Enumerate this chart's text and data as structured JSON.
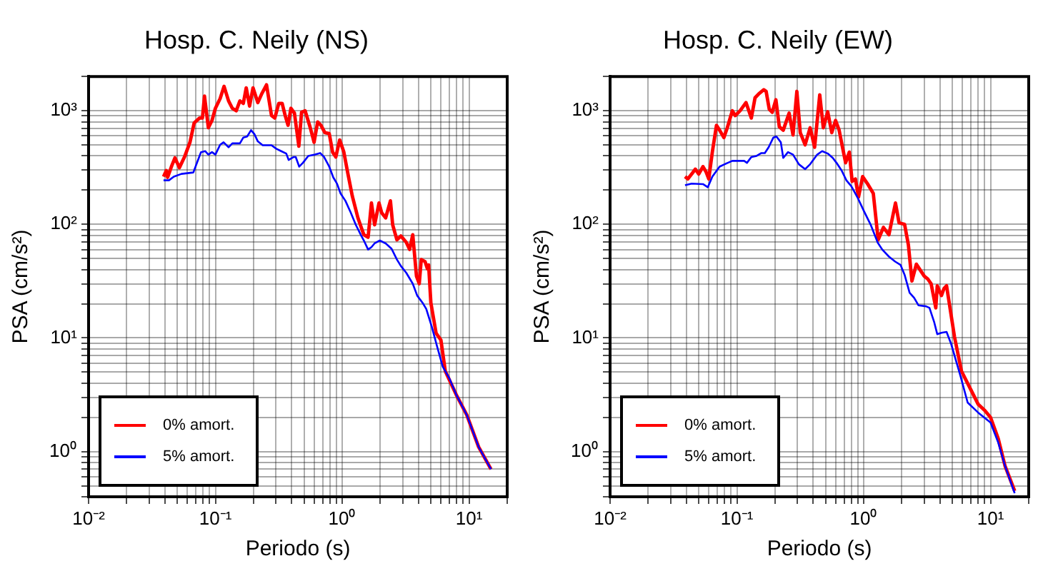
{
  "chart_data": [
    {
      "type": "line",
      "title": "Hosp. C. Neily (NS)",
      "xlabel": "Periodo (s)",
      "ylabel": "PSA (cm/s²)",
      "log": "xy",
      "grid": true,
      "legend": "bottom left",
      "xlim": [
        0.01,
        20
      ],
      "ylim": [
        0.4,
        2000
      ],
      "xticks": [
        {
          "value": 0.01,
          "label": "10⁻²"
        },
        {
          "value": 0.02,
          "label": null
        },
        {
          "value": 0.03,
          "label": null
        },
        {
          "value": 0.04,
          "label": null
        },
        {
          "value": 0.05,
          "label": null
        },
        {
          "value": 0.06,
          "label": null
        },
        {
          "value": 0.07,
          "label": null
        },
        {
          "value": 0.08,
          "label": null
        },
        {
          "value": 0.09,
          "label": null
        },
        {
          "value": 0.1,
          "label": "10⁻¹"
        },
        {
          "value": 0.2,
          "label": null
        },
        {
          "value": 0.3,
          "label": null
        },
        {
          "value": 0.4,
          "label": null
        },
        {
          "value": 0.5,
          "label": null
        },
        {
          "value": 0.6,
          "label": null
        },
        {
          "value": 0.7,
          "label": null
        },
        {
          "value": 0.8,
          "label": null
        },
        {
          "value": 0.9,
          "label": null
        },
        {
          "value": 1,
          "label": "10⁰"
        },
        {
          "value": 2,
          "label": null
        },
        {
          "value": 3,
          "label": null
        },
        {
          "value": 4,
          "label": null
        },
        {
          "value": 5,
          "label": null
        },
        {
          "value": 6,
          "label": null
        },
        {
          "value": 7,
          "label": null
        },
        {
          "value": 8,
          "label": null
        },
        {
          "value": 9,
          "label": null
        },
        {
          "value": 10,
          "label": "10¹"
        },
        {
          "value": 20,
          "label": null
        }
      ],
      "yticks": [
        {
          "value": 0.4,
          "label": null
        },
        {
          "value": 0.5,
          "label": null
        },
        {
          "value": 0.6,
          "label": null
        },
        {
          "value": 0.7,
          "label": null
        },
        {
          "value": 0.8,
          "label": null
        },
        {
          "value": 0.9,
          "label": null
        },
        {
          "value": 1,
          "label": "10⁰"
        },
        {
          "value": 2,
          "label": null
        },
        {
          "value": 3,
          "label": null
        },
        {
          "value": 4,
          "label": null
        },
        {
          "value": 5,
          "label": null
        },
        {
          "value": 6,
          "label": null
        },
        {
          "value": 7,
          "label": null
        },
        {
          "value": 8,
          "label": null
        },
        {
          "value": 9,
          "label": null
        },
        {
          "value": 10,
          "label": "10¹"
        },
        {
          "value": 20,
          "label": null
        },
        {
          "value": 30,
          "label": null
        },
        {
          "value": 40,
          "label": null
        },
        {
          "value": 50,
          "label": null
        },
        {
          "value": 60,
          "label": null
        },
        {
          "value": 70,
          "label": null
        },
        {
          "value": 80,
          "label": null
        },
        {
          "value": 90,
          "label": null
        },
        {
          "value": 100,
          "label": "10²"
        },
        {
          "value": 200,
          "label": null
        },
        {
          "value": 300,
          "label": null
        },
        {
          "value": 400,
          "label": null
        },
        {
          "value": 500,
          "label": null
        },
        {
          "value": 600,
          "label": null
        },
        {
          "value": 700,
          "label": null
        },
        {
          "value": 800,
          "label": null
        },
        {
          "value": 900,
          "label": null
        },
        {
          "value": 1000,
          "label": "10³"
        },
        {
          "value": 2000,
          "label": null
        }
      ],
      "series": [
        {
          "name": "0% amort.",
          "color": "#ff0000",
          "x": [
            0.039,
            0.041,
            0.042,
            0.045,
            0.048,
            0.052,
            0.057,
            0.063,
            0.068,
            0.075,
            0.079,
            0.082,
            0.088,
            0.094,
            0.1,
            0.109,
            0.117,
            0.127,
            0.136,
            0.146,
            0.156,
            0.166,
            0.175,
            0.186,
            0.198,
            0.216,
            0.232,
            0.253,
            0.277,
            0.294,
            0.316,
            0.336,
            0.355,
            0.374,
            0.394,
            0.42,
            0.455,
            0.478,
            0.51,
            0.56,
            0.6,
            0.64,
            0.68,
            0.73,
            0.79,
            0.84,
            0.89,
            0.955,
            1.03,
            1.1,
            1.2,
            1.33,
            1.48,
            1.6,
            1.7,
            1.8,
            1.95,
            2.05,
            2.2,
            2.4,
            2.5,
            2.7,
            2.9,
            3.2,
            3.4,
            3.6,
            3.85,
            4.05,
            4.2,
            4.5,
            4.7,
            4.8,
            5.0,
            5.5,
            6.0,
            6.5,
            8.0,
            9.6,
            11.9,
            14.9
          ],
          "values": [
            263,
            297,
            259,
            322,
            385,
            315,
            391,
            527,
            781,
            862,
            862,
            1345,
            708,
            821,
            1050,
            1280,
            1640,
            1220,
            1050,
            1000,
            1220,
            1160,
            1590,
            1100,
            1590,
            1180,
            1410,
            1690,
            906,
            862,
            1160,
            1160,
            906,
            744,
            1050,
            952,
            487,
            970,
            1000,
            708,
            527,
            797,
            744,
            641,
            629,
            432,
            391,
            553,
            432,
            292,
            178,
            114,
            81,
            77,
            154,
            99,
            154,
            126,
            114,
            161,
            99,
            73,
            79,
            69.5,
            60,
            81,
            35,
            30,
            49,
            47,
            40.5,
            44,
            20.4,
            11,
            9.6,
            5.1,
            3.1,
            2.1,
            1.1,
            0.7
          ]
        },
        {
          "name": "5% amort.",
          "color": "#0000ff",
          "x": [
            0.039,
            0.043,
            0.047,
            0.054,
            0.067,
            0.072,
            0.077,
            0.083,
            0.088,
            0.094,
            0.1,
            0.109,
            0.116,
            0.127,
            0.136,
            0.156,
            0.166,
            0.178,
            0.191,
            0.203,
            0.216,
            0.236,
            0.277,
            0.302,
            0.33,
            0.362,
            0.378,
            0.412,
            0.43,
            0.458,
            0.49,
            0.54,
            0.61,
            0.67,
            0.72,
            0.79,
            0.85,
            0.91,
            0.97,
            1.06,
            1.17,
            1.28,
            1.4,
            1.5,
            1.6,
            1.7,
            1.8,
            1.98,
            2.2,
            2.45,
            2.7,
            2.9,
            3.2,
            3.6,
            3.9,
            4.3,
            4.6,
            5.1,
            5.6,
            6.2,
            7.0,
            8.0,
            9.6,
            11.9,
            14.9
          ],
          "values": [
            244,
            244,
            263,
            278,
            286,
            355,
            432,
            441,
            411,
            432,
            411,
            502,
            527,
            477,
            516,
            516,
            581,
            593,
            674,
            623,
            537,
            497,
            497,
            463,
            441,
            420,
            369,
            391,
            391,
            322,
            348,
            400,
            411,
            424,
            391,
            322,
            259,
            228,
            187,
            161,
            126,
            99,
            81,
            70,
            60,
            63,
            68,
            72,
            68,
            61,
            49,
            43,
            37.4,
            30,
            23.6,
            20.4,
            18,
            12.4,
            8.4,
            5.6,
            4.4,
            3.1,
            2.1,
            1.1,
            0.7
          ]
        }
      ]
    },
    {
      "type": "line",
      "title": "Hosp. C. Neily (EW)",
      "xlabel": "Periodo (s)",
      "ylabel": "PSA (cm/s²)",
      "log": "xy",
      "grid": true,
      "legend": "bottom left",
      "xlim": [
        0.01,
        20
      ],
      "ylim": [
        0.4,
        2000
      ],
      "xticks": [
        {
          "value": 0.01,
          "label": "10⁻²"
        },
        {
          "value": 0.02,
          "label": null
        },
        {
          "value": 0.03,
          "label": null
        },
        {
          "value": 0.04,
          "label": null
        },
        {
          "value": 0.05,
          "label": null
        },
        {
          "value": 0.06,
          "label": null
        },
        {
          "value": 0.07,
          "label": null
        },
        {
          "value": 0.08,
          "label": null
        },
        {
          "value": 0.09,
          "label": null
        },
        {
          "value": 0.1,
          "label": "10⁻¹"
        },
        {
          "value": 0.2,
          "label": null
        },
        {
          "value": 0.3,
          "label": null
        },
        {
          "value": 0.4,
          "label": null
        },
        {
          "value": 0.5,
          "label": null
        },
        {
          "value": 0.6,
          "label": null
        },
        {
          "value": 0.7,
          "label": null
        },
        {
          "value": 0.8,
          "label": null
        },
        {
          "value": 0.9,
          "label": null
        },
        {
          "value": 1,
          "label": "10⁰"
        },
        {
          "value": 2,
          "label": null
        },
        {
          "value": 3,
          "label": null
        },
        {
          "value": 4,
          "label": null
        },
        {
          "value": 5,
          "label": null
        },
        {
          "value": 6,
          "label": null
        },
        {
          "value": 7,
          "label": null
        },
        {
          "value": 8,
          "label": null
        },
        {
          "value": 9,
          "label": null
        },
        {
          "value": 10,
          "label": "10¹"
        },
        {
          "value": 20,
          "label": null
        }
      ],
      "yticks": [
        {
          "value": 0.4,
          "label": null
        },
        {
          "value": 0.5,
          "label": null
        },
        {
          "value": 0.6,
          "label": null
        },
        {
          "value": 0.7,
          "label": null
        },
        {
          "value": 0.8,
          "label": null
        },
        {
          "value": 0.9,
          "label": null
        },
        {
          "value": 1,
          "label": "10⁰"
        },
        {
          "value": 2,
          "label": null
        },
        {
          "value": 3,
          "label": null
        },
        {
          "value": 4,
          "label": null
        },
        {
          "value": 5,
          "label": null
        },
        {
          "value": 6,
          "label": null
        },
        {
          "value": 7,
          "label": null
        },
        {
          "value": 8,
          "label": null
        },
        {
          "value": 9,
          "label": null
        },
        {
          "value": 10,
          "label": "10¹"
        },
        {
          "value": 20,
          "label": null
        },
        {
          "value": 30,
          "label": null
        },
        {
          "value": 40,
          "label": null
        },
        {
          "value": 50,
          "label": null
        },
        {
          "value": 60,
          "label": null
        },
        {
          "value": 70,
          "label": null
        },
        {
          "value": 80,
          "label": null
        },
        {
          "value": 90,
          "label": null
        },
        {
          "value": 100,
          "label": "10²"
        },
        {
          "value": 200,
          "label": null
        },
        {
          "value": 300,
          "label": null
        },
        {
          "value": 400,
          "label": null
        },
        {
          "value": 500,
          "label": null
        },
        {
          "value": 600,
          "label": null
        },
        {
          "value": 700,
          "label": null
        },
        {
          "value": 800,
          "label": null
        },
        {
          "value": 900,
          "label": null
        },
        {
          "value": 1000,
          "label": "10³"
        },
        {
          "value": 2000,
          "label": null
        }
      ],
      "series": [
        {
          "name": "0% amort.",
          "color": "#ff0000",
          "x": [
            0.039,
            0.041,
            0.044,
            0.047,
            0.05,
            0.054,
            0.057,
            0.06,
            0.064,
            0.069,
            0.073,
            0.079,
            0.084,
            0.092,
            0.097,
            0.106,
            0.118,
            0.13,
            0.139,
            0.149,
            0.163,
            0.17,
            0.18,
            0.19,
            0.203,
            0.216,
            0.232,
            0.258,
            0.277,
            0.297,
            0.316,
            0.345,
            0.378,
            0.41,
            0.45,
            0.48,
            0.52,
            0.56,
            0.6,
            0.64,
            0.68,
            0.72,
            0.77,
            0.81,
            0.86,
            0.91,
            0.98,
            1.07,
            1.19,
            1.3,
            1.43,
            1.58,
            1.78,
            1.9,
            2.1,
            2.25,
            2.4,
            2.6,
            3.0,
            3.2,
            3.4,
            3.7,
            3.8,
            4.1,
            4.3,
            4.5,
            5.2,
            5.9,
            7.0,
            8.0,
            9.0,
            10.0,
            11.5,
            13,
            15.5
          ],
          "values": [
            263,
            251,
            277,
            306,
            277,
            322,
            291,
            251,
            432,
            744,
            674,
            581,
            708,
            1000,
            906,
            1000,
            1180,
            862,
            1300,
            1410,
            1530,
            1480,
            1030,
            970,
            1250,
            722,
            674,
            952,
            611,
            1480,
            641,
            501,
            708,
            477,
            1380,
            708,
            980,
            641,
            821,
            674,
            477,
            348,
            432,
            239,
            251,
            174,
            263,
            228,
            187,
            73,
            94,
            81,
            154,
            103,
            100,
            66,
            31.7,
            44.6,
            35,
            33,
            30,
            18.4,
            28.8,
            23.6,
            27.3,
            28.8,
            10.2,
            5.1,
            3.5,
            2.6,
            2.3,
            2.0,
            1.3,
            0.75,
            0.45
          ]
        },
        {
          "name": "5% amort.",
          "color": "#0000ff",
          "x": [
            0.039,
            0.044,
            0.054,
            0.059,
            0.064,
            0.073,
            0.08,
            0.092,
            0.114,
            0.12,
            0.13,
            0.143,
            0.156,
            0.166,
            0.178,
            0.194,
            0.205,
            0.222,
            0.232,
            0.253,
            0.277,
            0.308,
            0.345,
            0.378,
            0.43,
            0.47,
            0.52,
            0.57,
            0.61,
            0.67,
            0.73,
            0.8,
            0.89,
            1.0,
            1.14,
            1.29,
            1.4,
            1.58,
            1.77,
            1.95,
            2.1,
            2.3,
            2.5,
            2.7,
            3.1,
            3.3,
            3.6,
            3.8,
            4.1,
            4.5,
            4.9,
            5.8,
            6.6,
            8.0,
            10,
            11.5,
            13,
            15.5
          ],
          "values": [
            221,
            228,
            226,
            212,
            263,
            322,
            338,
            362,
            362,
            348,
            391,
            400,
            424,
            424,
            477,
            581,
            593,
            527,
            384,
            432,
            411,
            338,
            306,
            338,
            411,
            441,
            420,
            384,
            348,
            297,
            244,
            216,
            174,
            132,
            98,
            69,
            60,
            52,
            47,
            44,
            36,
            25,
            22.5,
            19.4,
            19,
            18.4,
            13.7,
            10.8,
            11.1,
            11.3,
            8.8,
            4.6,
            2.7,
            2.2,
            1.8,
            1.2,
            0.75,
            0.43
          ]
        }
      ]
    }
  ]
}
